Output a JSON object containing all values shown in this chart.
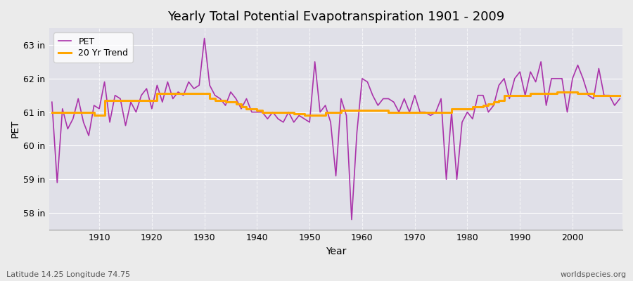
{
  "title": "Yearly Total Potential Evapotranspiration 1901 - 2009",
  "xlabel": "Year",
  "ylabel": "PET",
  "subtitle_left": "Latitude 14.25 Longitude 74.75",
  "subtitle_right": "worldspecies.org",
  "years": [
    1901,
    1902,
    1903,
    1904,
    1905,
    1906,
    1907,
    1908,
    1909,
    1910,
    1911,
    1912,
    1913,
    1914,
    1915,
    1916,
    1917,
    1918,
    1919,
    1920,
    1921,
    1922,
    1923,
    1924,
    1925,
    1926,
    1927,
    1928,
    1929,
    1930,
    1931,
    1932,
    1933,
    1934,
    1935,
    1936,
    1937,
    1938,
    1939,
    1940,
    1941,
    1942,
    1943,
    1944,
    1945,
    1946,
    1947,
    1948,
    1949,
    1950,
    1951,
    1952,
    1953,
    1954,
    1955,
    1956,
    1957,
    1958,
    1959,
    1960,
    1961,
    1962,
    1963,
    1964,
    1965,
    1966,
    1967,
    1968,
    1969,
    1970,
    1971,
    1972,
    1973,
    1974,
    1975,
    1976,
    1977,
    1978,
    1979,
    1980,
    1981,
    1982,
    1983,
    1984,
    1985,
    1986,
    1987,
    1988,
    1989,
    1990,
    1991,
    1992,
    1993,
    1994,
    1995,
    1996,
    1997,
    1998,
    1999,
    2000,
    2001,
    2002,
    2003,
    2004,
    2005,
    2006,
    2007,
    2008,
    2009
  ],
  "pet": [
    61.3,
    58.9,
    61.1,
    60.5,
    60.8,
    61.4,
    60.7,
    60.3,
    61.2,
    61.1,
    61.9,
    60.7,
    61.5,
    61.4,
    60.6,
    61.3,
    61.0,
    61.5,
    61.7,
    61.1,
    61.8,
    61.3,
    61.9,
    61.4,
    61.6,
    61.5,
    61.9,
    61.7,
    61.8,
    63.2,
    61.8,
    61.5,
    61.4,
    61.2,
    61.6,
    61.4,
    61.1,
    61.4,
    61.0,
    61.0,
    61.0,
    60.8,
    61.0,
    60.8,
    60.7,
    61.0,
    60.7,
    60.9,
    60.8,
    60.7,
    62.5,
    61.0,
    61.2,
    60.7,
    59.1,
    61.4,
    60.9,
    57.8,
    60.4,
    62.0,
    61.9,
    61.5,
    61.2,
    61.4,
    61.4,
    61.3,
    61.0,
    61.4,
    61.0,
    61.5,
    61.0,
    61.0,
    60.9,
    61.0,
    61.4,
    59.0,
    61.0,
    59.0,
    60.7,
    61.0,
    60.8,
    61.5,
    61.5,
    61.0,
    61.2,
    61.8,
    62.0,
    61.4,
    62.0,
    62.2,
    61.5,
    62.2,
    61.9,
    62.5,
    61.2,
    62.0,
    62.0,
    62.0,
    61.0,
    62.0,
    62.4,
    62.0,
    61.5,
    61.4,
    62.3,
    61.5,
    61.5,
    61.2,
    61.4
  ],
  "trend": [
    61.0,
    61.0,
    61.0,
    61.0,
    61.0,
    61.0,
    61.0,
    61.0,
    60.9,
    60.9,
    61.35,
    61.35,
    61.35,
    61.35,
    61.35,
    61.35,
    61.35,
    61.35,
    61.35,
    61.35,
    61.55,
    61.55,
    61.55,
    61.55,
    61.55,
    61.55,
    61.55,
    61.55,
    61.55,
    61.55,
    61.4,
    61.35,
    61.35,
    61.3,
    61.3,
    61.25,
    61.15,
    61.1,
    61.1,
    61.05,
    61.0,
    61.0,
    61.0,
    61.0,
    61.0,
    61.0,
    60.95,
    60.95,
    60.9,
    60.9,
    60.9,
    60.9,
    61.0,
    61.0,
    61.0,
    61.05,
    61.05,
    61.05,
    61.05,
    61.05,
    61.05,
    61.05,
    61.05,
    61.05,
    61.0,
    61.0,
    61.0,
    61.0,
    61.0,
    61.0,
    61.0,
    61.0,
    61.0,
    61.0,
    61.0,
    61.0,
    61.1,
    61.1,
    61.1,
    61.1,
    61.15,
    61.15,
    61.2,
    61.25,
    61.3,
    61.35,
    61.5,
    61.5,
    61.5,
    61.5,
    61.5,
    61.55,
    61.55,
    61.55,
    61.55,
    61.55,
    61.6,
    61.6,
    61.6,
    61.6,
    61.55,
    61.55,
    61.55,
    61.5,
    61.5,
    61.5,
    61.5,
    61.5,
    61.5
  ],
  "pet_color": "#AA33AA",
  "trend_color": "#FFA500",
  "bg_color": "#EBEBEB",
  "plot_bg_color": "#E0E0E8",
  "ylim": [
    57.5,
    63.5
  ],
  "yticks": [
    58,
    59,
    60,
    61,
    62,
    63
  ],
  "ytick_labels": [
    "58 in",
    "59 in",
    "60 in",
    "61 in",
    "62 in",
    "63 in"
  ],
  "xlim": [
    1900.5,
    2009.5
  ],
  "xticks": [
    1910,
    1920,
    1930,
    1940,
    1950,
    1960,
    1970,
    1980,
    1990,
    2000
  ],
  "grid_color": "#FFFFFF",
  "title_fontsize": 13,
  "axis_fontsize": 9,
  "legend_fontsize": 9,
  "pet_linewidth": 1.2,
  "trend_linewidth": 2.2
}
